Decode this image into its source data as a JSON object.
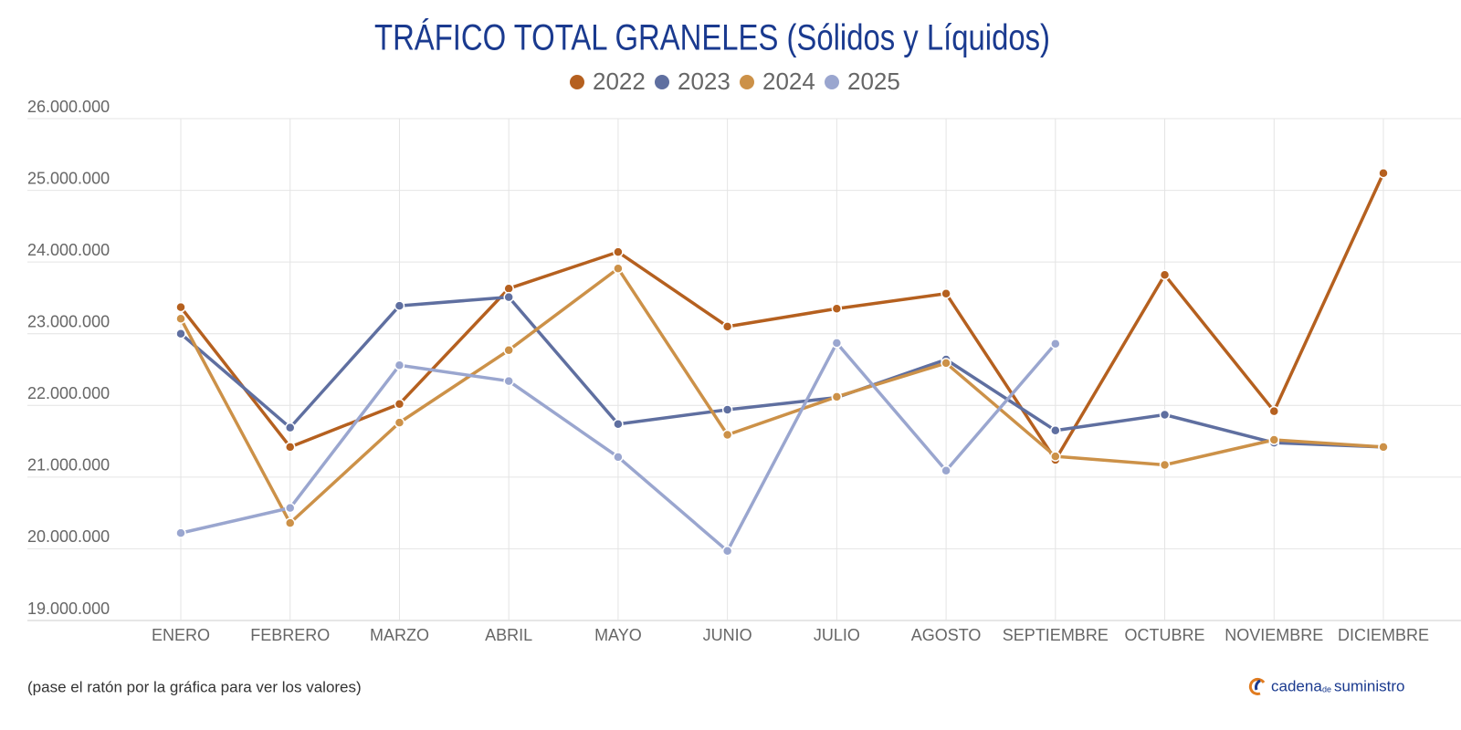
{
  "chart_data": {
    "type": "line",
    "title": "TRÁFICO TOTAL GRANELES (Sólidos y Líquidos)",
    "categories": [
      "ENERO",
      "FEBRERO",
      "MARZO",
      "ABRIL",
      "MAYO",
      "JUNIO",
      "JULIO",
      "AGOSTO",
      "SEPTIEMBRE",
      "OCTUBRE",
      "NOVIEMBRE",
      "DICIEMBRE"
    ],
    "series": [
      {
        "name": "2022",
        "color": "#b5601f",
        "values": [
          23370000,
          21420000,
          22020000,
          23630000,
          24140000,
          23100000,
          23350000,
          23560000,
          21240000,
          23820000,
          21920000,
          25240000
        ]
      },
      {
        "name": "2023",
        "color": "#5f6fa0",
        "values": [
          23000000,
          21690000,
          23390000,
          23510000,
          21740000,
          21940000,
          22110000,
          22640000,
          21650000,
          21870000,
          21480000,
          21420000
        ]
      },
      {
        "name": "2024",
        "color": "#cc9148",
        "values": [
          23210000,
          20360000,
          21760000,
          22770000,
          23910000,
          21590000,
          22120000,
          22590000,
          21290000,
          21170000,
          21520000,
          21420000
        ]
      },
      {
        "name": "2025",
        "color": "#9aa6cf",
        "values": [
          20220000,
          20570000,
          22560000,
          22340000,
          21280000,
          19970000,
          22870000,
          21090000,
          22860000,
          null,
          null,
          null
        ]
      }
    ],
    "ylim": [
      19000000,
      26000000
    ],
    "yticks": [
      {
        "value": 19000000,
        "label": "19.000.000"
      },
      {
        "value": 20000000,
        "label": "20.000.000"
      },
      {
        "value": 21000000,
        "label": "21.000.000"
      },
      {
        "value": 22000000,
        "label": "22.000.000"
      },
      {
        "value": 23000000,
        "label": "23.000.000"
      },
      {
        "value": 24000000,
        "label": "24.000.000"
      },
      {
        "value": 25000000,
        "label": "25.000.000"
      },
      {
        "value": 26000000,
        "label": "26.000.000"
      }
    ],
    "grid": true,
    "legend": "top",
    "note": "(pase el ratón por la gráfica para ver los valores)",
    "logo": {
      "word1": "cadena",
      "word2": "de",
      "word3": "suministro"
    }
  }
}
